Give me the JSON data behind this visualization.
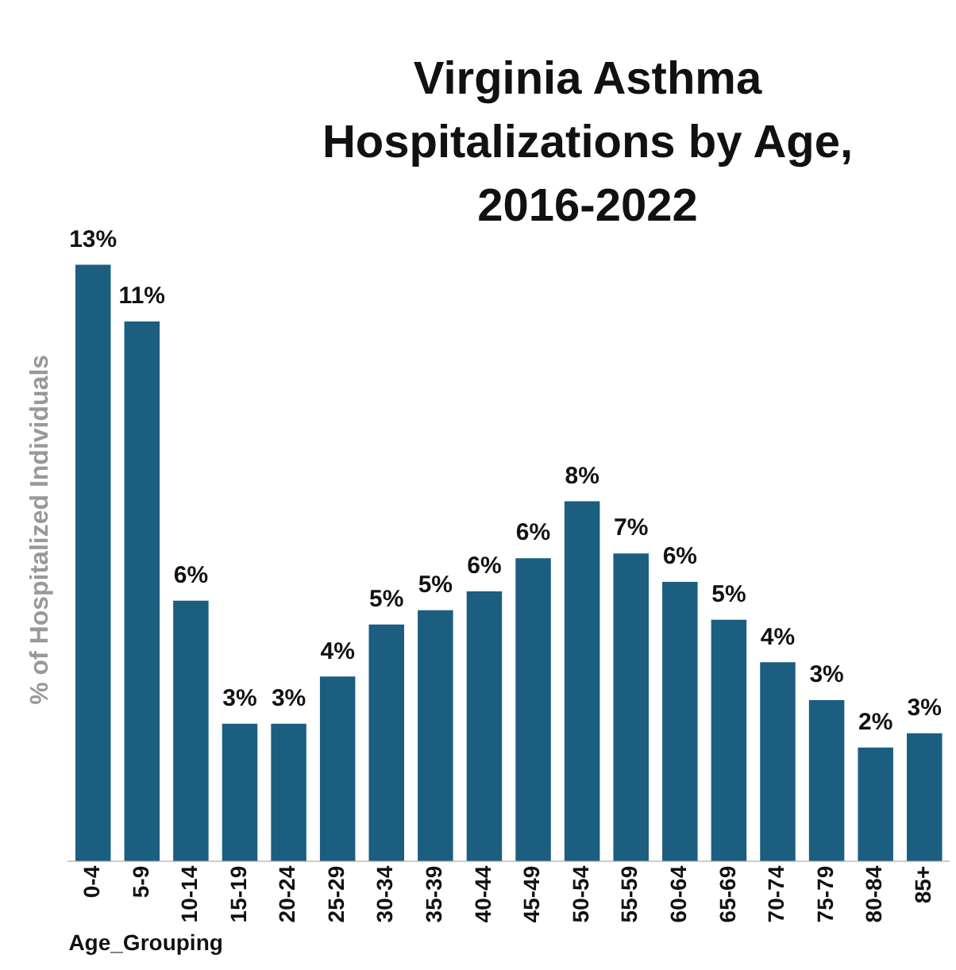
{
  "chart_data": {
    "type": "bar",
    "title": "Virginia Asthma Hospitalizations by Age, 2016-2022",
    "xlabel": "Age_Grouping",
    "ylabel": "% of Hospitalized Individuals",
    "categories": [
      "0-4",
      "5-9",
      "10-14",
      "15-19",
      "20-24",
      "25-29",
      "30-34",
      "35-39",
      "40-44",
      "45-49",
      "50-54",
      "55-59",
      "60-64",
      "65-69",
      "70-74",
      "75-79",
      "80-84",
      "85+"
    ],
    "values": [
      12.6,
      11.4,
      5.5,
      2.9,
      2.9,
      3.9,
      5.0,
      5.3,
      5.7,
      6.4,
      7.6,
      6.5,
      5.9,
      5.1,
      4.2,
      3.4,
      2.4,
      2.7
    ],
    "value_labels": [
      "13%",
      "11%",
      "6%",
      "3%",
      "3%",
      "4%",
      "5%",
      "5%",
      "6%",
      "6%",
      "8%",
      "7%",
      "6%",
      "5%",
      "4%",
      "3%",
      "2%",
      "3%"
    ],
    "color": "#1b5e80",
    "grid": false,
    "legend": false
  }
}
